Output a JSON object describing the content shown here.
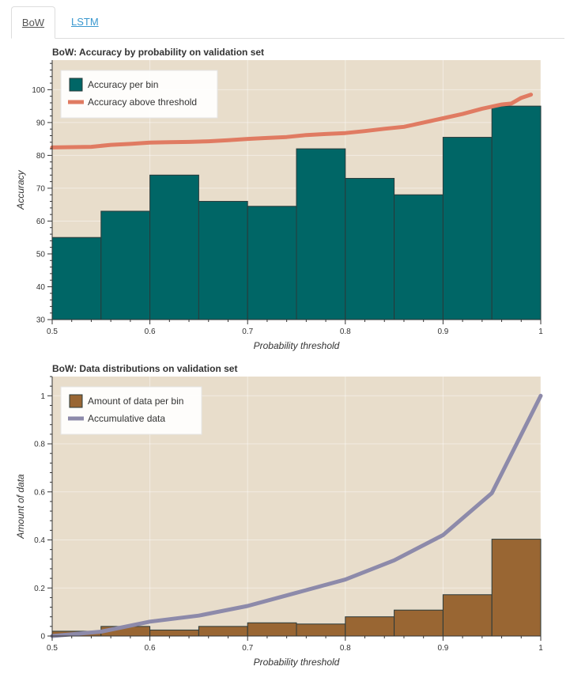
{
  "tabs": [
    {
      "label": "BoW",
      "active": true
    },
    {
      "label": "LSTM",
      "active": false
    }
  ],
  "colors": {
    "plot_bg": "#e8ddcb",
    "accuracy_bar": "#006666",
    "accuracy_line": "#e07b62",
    "amount_bar": "#996633",
    "accum_line": "#8d8aaa",
    "bar_edge": "#2a3a3a"
  },
  "chart_data": [
    {
      "type": "bar",
      "title": "BoW: Accuracy by probability on validation set",
      "xlabel": "Probability threshold",
      "ylabel": "Accuracy",
      "xlim": [
        0.5,
        1.0
      ],
      "ylim": [
        30,
        109
      ],
      "grid": true,
      "legend_position": "top-left",
      "xticks": [
        "0.5",
        "0.6",
        "0.7",
        "0.8",
        "0.9",
        "1"
      ],
      "yticks": [
        "30",
        "40",
        "50",
        "60",
        "70",
        "80",
        "90",
        "100"
      ],
      "bins": [
        0.5,
        0.55,
        0.6,
        0.65,
        0.7,
        0.75,
        0.8,
        0.85,
        0.9,
        0.95
      ],
      "bin_width": 0.05,
      "series": [
        {
          "name": "Accuracy per bin",
          "kind": "bar",
          "values": [
            55,
            63,
            74,
            66,
            64.5,
            82,
            73,
            68,
            85.5,
            95
          ]
        },
        {
          "name": "Accuracy above threshold",
          "kind": "line",
          "x": [
            0.5,
            0.52,
            0.54,
            0.56,
            0.58,
            0.6,
            0.62,
            0.64,
            0.66,
            0.68,
            0.7,
            0.72,
            0.74,
            0.76,
            0.78,
            0.8,
            0.82,
            0.84,
            0.86,
            0.88,
            0.9,
            0.92,
            0.94,
            0.96,
            0.97,
            0.98,
            0.99
          ],
          "y": [
            82.4,
            82.5,
            82.6,
            83.2,
            83.5,
            83.9,
            84.0,
            84.1,
            84.3,
            84.6,
            85.0,
            85.3,
            85.6,
            86.2,
            86.5,
            86.8,
            87.4,
            88.1,
            88.7,
            90.0,
            91.3,
            92.6,
            94.2,
            95.5,
            95.8,
            97.5,
            98.5
          ]
        }
      ]
    },
    {
      "type": "bar",
      "title": "BoW: Data distributions on validation set",
      "xlabel": "Probability threshold",
      "ylabel": "Amount of data",
      "xlim": [
        0.5,
        1.0
      ],
      "ylim": [
        0,
        1.08
      ],
      "grid": true,
      "legend_position": "top-left",
      "xticks": [
        "0.5",
        "0.6",
        "0.7",
        "0.8",
        "0.9",
        "1"
      ],
      "yticks": [
        "0",
        "0.2",
        "0.4",
        "0.6",
        "0.8",
        "1"
      ],
      "bins": [
        0.5,
        0.55,
        0.6,
        0.65,
        0.7,
        0.75,
        0.8,
        0.85,
        0.9,
        0.95
      ],
      "bin_width": 0.05,
      "series": [
        {
          "name": "Amount of data per bin",
          "kind": "bar",
          "values": [
            0.02,
            0.04,
            0.025,
            0.04,
            0.055,
            0.05,
            0.08,
            0.108,
            0.172,
            0.403
          ]
        },
        {
          "name": "Accumulative data",
          "kind": "line",
          "x": [
            0.5,
            0.55,
            0.6,
            0.65,
            0.7,
            0.75,
            0.8,
            0.85,
            0.9,
            0.95,
            1.0
          ],
          "y": [
            0.0,
            0.018,
            0.06,
            0.085,
            0.125,
            0.18,
            0.235,
            0.315,
            0.42,
            0.595,
            1.0
          ]
        }
      ]
    }
  ]
}
